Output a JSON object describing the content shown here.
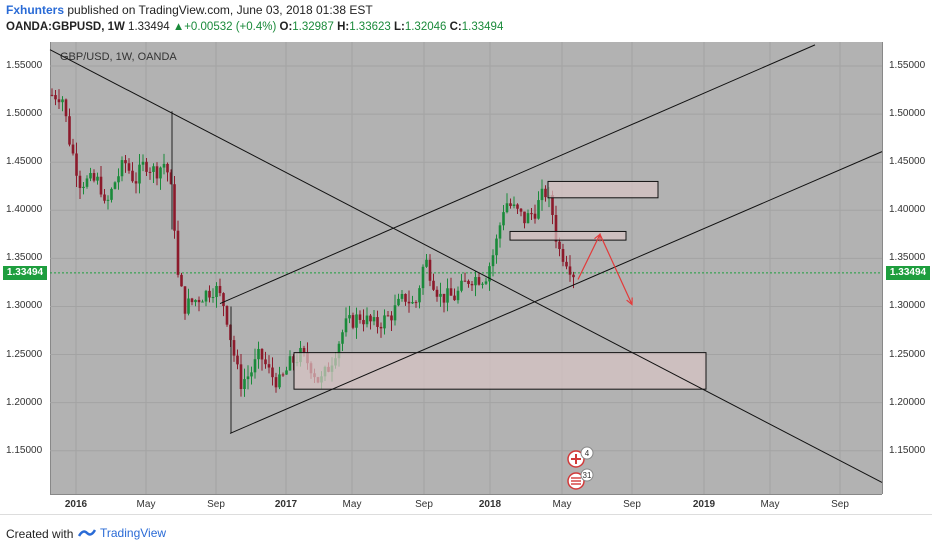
{
  "header": {
    "author": "Fxhunters",
    "published_text": " published on TradingView.com, June 03, 2018 01:38 EST",
    "symbol": "OANDA:GBPUSD, 1W",
    "last": "1.33494",
    "change_arrow": "▲",
    "change": "+0.00532 (+0.4%)",
    "o_label": "O:",
    "o_value": "1.32987",
    "h_label": "H:",
    "h_value": "1.33623",
    "l_label": "L:",
    "l_value": "1.32046",
    "c_label": "C:",
    "c_value": "1.33494"
  },
  "chart_data": {
    "type": "candlestick",
    "title": "GBP/USD, 1W, OANDA",
    "ylim": [
      1.105,
      1.575
    ],
    "y_ticks": [
      "1.55000",
      "1.50000",
      "1.45000",
      "1.40000",
      "1.35000",
      "1.30000",
      "1.25000",
      "1.20000",
      "1.15000"
    ],
    "x_ticks": [
      {
        "label": "2016",
        "bold": true
      },
      {
        "label": "May",
        "bold": false
      },
      {
        "label": "Sep",
        "bold": false
      },
      {
        "label": "2017",
        "bold": true
      },
      {
        "label": "May",
        "bold": false
      },
      {
        "label": "Sep",
        "bold": false
      },
      {
        "label": "2018",
        "bold": true
      },
      {
        "label": "May",
        "bold": false
      },
      {
        "label": "Sep",
        "bold": false
      },
      {
        "label": "2019",
        "bold": true
      },
      {
        "label": "May",
        "bold": false
      },
      {
        "label": "Sep",
        "bold": false
      }
    ],
    "current_price": "1.33494",
    "grid": true,
    "colors": {
      "up": "#1a8a3a",
      "down": "#8c1a2b",
      "background": "#b2b2b2",
      "box": "#d8c4c4",
      "arrow": "#e23a3a"
    }
  },
  "events": [
    {
      "flag": "uk-flag-icon",
      "count": "4"
    },
    {
      "flag": "us-flag-icon",
      "count": "31"
    }
  ],
  "footer": {
    "created_with": "Created with",
    "brand": "TradingView"
  }
}
